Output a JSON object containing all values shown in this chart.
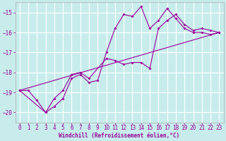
{
  "xlabel": "Windchill (Refroidissement éolien,°C)",
  "background_color": "#c8ecec",
  "grid_color": "#ffffff",
  "line_color": "#990099",
  "xlim": [
    -0.5,
    23.5
  ],
  "ylim": [
    -20.5,
    -14.5
  ],
  "yticks": [
    -20,
    -19,
    -18,
    -17,
    -16,
    -15
  ],
  "xticks": [
    0,
    1,
    2,
    3,
    4,
    5,
    6,
    7,
    8,
    9,
    10,
    11,
    12,
    13,
    14,
    15,
    16,
    17,
    18,
    19,
    20,
    21,
    22,
    23
  ],
  "line1_x": [
    0,
    1,
    2,
    3,
    4,
    5,
    6,
    7,
    8,
    9,
    10,
    11,
    12,
    13,
    14,
    15,
    16,
    17,
    18,
    19,
    20,
    21,
    22,
    23
  ],
  "line1_y": [
    -18.9,
    -18.9,
    -19.4,
    -20.0,
    -19.7,
    -19.3,
    -18.3,
    -18.1,
    -18.5,
    -18.4,
    -17.0,
    -15.8,
    -15.1,
    -15.2,
    -14.7,
    -15.8,
    -15.4,
    -14.8,
    -15.3,
    -15.8,
    -16.0,
    -16.0,
    -16.1,
    -16.0
  ],
  "line2_x": [
    0,
    3,
    4,
    5,
    6,
    7,
    8,
    10,
    11,
    12,
    13,
    14,
    15,
    16,
    17,
    18,
    19,
    20,
    21,
    22,
    23
  ],
  "line2_y": [
    -18.9,
    -20.0,
    -19.3,
    -18.9,
    -18.1,
    -18.0,
    -18.3,
    -17.3,
    -17.4,
    -17.6,
    -17.5,
    -17.5,
    -17.8,
    -15.8,
    -15.4,
    -15.1,
    -15.6,
    -15.9,
    -15.8,
    -15.9,
    -16.0
  ],
  "line3_x": [
    0,
    23
  ],
  "line3_y": [
    -18.9,
    -16.0
  ],
  "tick_fontsize": 5.5,
  "xlabel_fontsize": 5.5,
  "marker_size": 2.0,
  "linewidth": 0.8
}
